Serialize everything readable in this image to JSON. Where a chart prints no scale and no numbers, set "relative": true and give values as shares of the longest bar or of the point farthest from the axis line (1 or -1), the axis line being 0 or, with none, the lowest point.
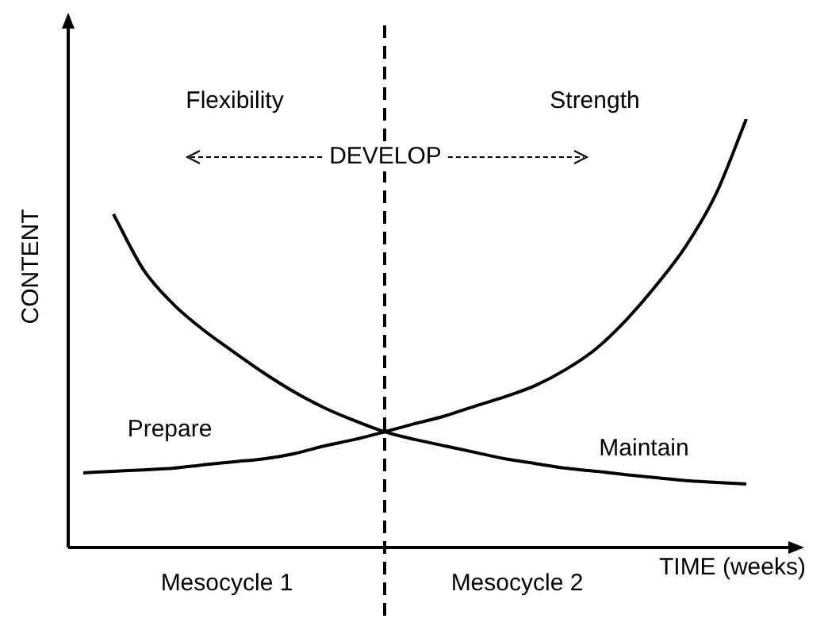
{
  "chart_data": {
    "type": "line",
    "relative": true,
    "xlabel": "TIME (weeks)",
    "ylabel": "CONTENT",
    "categories": [
      null,
      null,
      null,
      null,
      null,
      null,
      null,
      null,
      null,
      null,
      null,
      null,
      null,
      null,
      null,
      null,
      null,
      null,
      null,
      null,
      null,
      null,
      null
    ],
    "series": [
      {
        "color": "#000000",
        "values": [
          0.174,
          0.178,
          0.181,
          0.185,
          0.193,
          0.2,
          0.207,
          0.219,
          0.237,
          0.252,
          0.27,
          0.289,
          0.307,
          0.33,
          0.352,
          0.378,
          0.415,
          0.463,
          0.53,
          0.611,
          0.704,
          0.826,
          1
        ]
      },
      {
        "color": "#000000",
        "values": [
          null,
          0.778,
          0.648,
          0.567,
          0.507,
          0.456,
          0.407,
          0.363,
          0.326,
          0.296,
          0.27,
          0.252,
          0.237,
          0.222,
          0.207,
          0.196,
          0.185,
          0.178,
          0.17,
          0.163,
          0.156,
          0.152,
          0.148
        ]
      }
    ],
    "annotations": [
      "Flexibility",
      "Strength",
      "DEVELOP",
      "Prepare",
      "Maintain",
      "Mesocycle 1",
      "Mesocycle 2"
    ],
    "marker": "none",
    "line_style": "solid",
    "legend": false
  }
}
